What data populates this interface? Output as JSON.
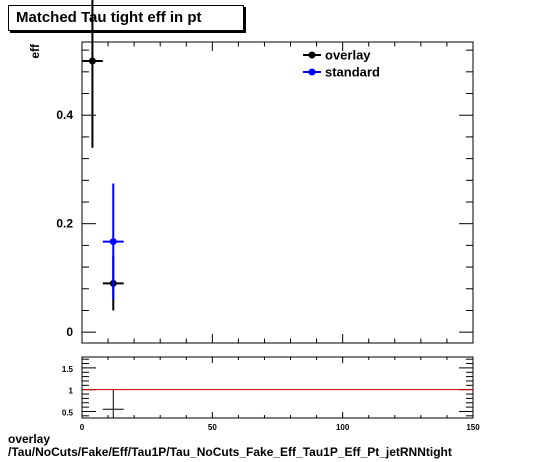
{
  "title": "Matched Tau tight eff in pt",
  "footer": {
    "line1": "overlay",
    "line2": "/Tau/NoCuts/Fake/Eff/Tau1P/Tau_NoCuts_Fake_Eff_Tau1P_Eff_Pt_jetRNNtight"
  },
  "colors": {
    "overlay": "#000000",
    "standard": "#0000ff",
    "ratio_line": "#cc0000"
  },
  "chart_data": [
    {
      "type": "scatter",
      "ylabel": "eff",
      "xlim": [
        0,
        150
      ],
      "ylim": [
        -0.02,
        0.535
      ],
      "yticks": [
        0,
        0.2,
        0.4
      ],
      "ytick_labels": [
        "0",
        "0.2",
        "0.4"
      ],
      "legend_position": "top-right",
      "series": [
        {
          "name": "overlay",
          "points": [
            {
              "x": 4,
              "xerr": 4,
              "y": 0.5,
              "yerr_lo": 0.16,
              "yerr_hi": 0.16
            },
            {
              "x": 12,
              "xerr": 4,
              "y": 0.09,
              "yerr_lo": 0.05,
              "yerr_hi": 0.05
            }
          ]
        },
        {
          "name": "standard",
          "points": [
            {
              "x": 12,
              "xerr": 4,
              "y": 0.167,
              "yerr_lo": 0.107,
              "yerr_hi": 0.107
            }
          ]
        }
      ]
    },
    {
      "type": "scatter",
      "xlim": [
        0,
        150
      ],
      "ylim": [
        0.35,
        1.75
      ],
      "xticks": [
        0,
        50,
        100,
        150
      ],
      "xtick_labels": [
        "0",
        "50",
        "100",
        "150"
      ],
      "yticks": [
        0.5,
        1,
        1.5
      ],
      "ytick_labels": [
        "0.5",
        "1",
        "1.5"
      ],
      "reference_line": 1,
      "series": [
        {
          "points": [
            {
              "x": 12,
              "xerr": 4,
              "y": 0.55,
              "yerr_lo": 0.25,
              "yerr_hi": 0.45
            }
          ]
        }
      ]
    }
  ]
}
